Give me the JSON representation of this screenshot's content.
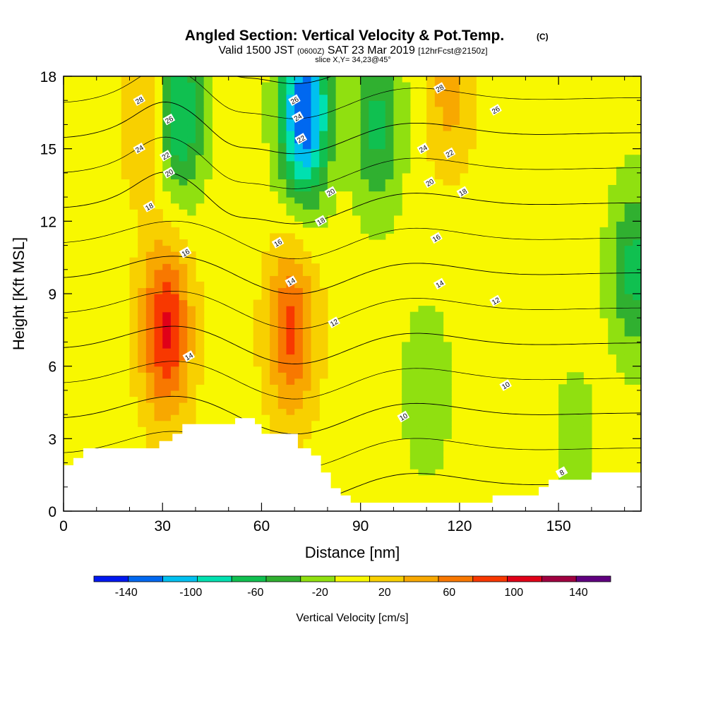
{
  "chart_data": {
    "type": "heatmap",
    "title": "Angled Section: Vertical Velocity & Pot.Temp.",
    "title_tag": "(C)",
    "valid_line": {
      "valid": "Valid 1500 JST",
      "zulu": "(0600Z)",
      "date": "SAT 23 Mar 2019",
      "forecast": "[12hrFcst@2150z]"
    },
    "slice_label": "slice X,Y= 34,23@45°",
    "xlabel": "Distance [nm]",
    "ylabel": "Height [Kft MSL]",
    "xlim": [
      0,
      175
    ],
    "ylim": [
      0,
      18
    ],
    "x_ticks": [
      "0",
      "30",
      "60",
      "90",
      "120",
      "150"
    ],
    "x_tick_values": [
      0,
      30,
      60,
      90,
      120,
      150
    ],
    "y_ticks": [
      "0",
      "3",
      "6",
      "9",
      "12",
      "15",
      "18"
    ],
    "y_tick_values": [
      0,
      3,
      6,
      9,
      12,
      15,
      18
    ],
    "colorbar": {
      "label": "Vertical Velocity [cm/s]",
      "tick_labels": [
        "-140",
        "-100",
        "-60",
        "-20",
        "20",
        "60",
        "100",
        "140"
      ],
      "tick_values": [
        -140,
        -100,
        -60,
        -20,
        20,
        60,
        100,
        140
      ],
      "range": [
        -160,
        160
      ],
      "colors": [
        "#0018f0",
        "#0068f0",
        "#00c0f0",
        "#00e0b0",
        "#10c050",
        "#30b030",
        "#90e010",
        "#f8f800",
        "#f8d000",
        "#f8a800",
        "#f87800",
        "#f83800",
        "#e00018",
        "#a00040",
        "#600080"
      ]
    },
    "velocity_cores": [
      {
        "x": 31,
        "z": 7.5,
        "value": 100
      },
      {
        "x": 69,
        "z": 7.5,
        "value": 80
      },
      {
        "x": 25,
        "z": 16.5,
        "value": 40
      },
      {
        "x": 117,
        "z": 17.5,
        "value": 40
      },
      {
        "x": 35,
        "z": 16.5,
        "value": -80
      },
      {
        "x": 73,
        "z": 16.5,
        "value": -140
      },
      {
        "x": 95,
        "z": 16.0,
        "value": -60
      },
      {
        "x": 173,
        "z": 10.0,
        "value": -60
      },
      {
        "x": 110,
        "z": 5.0,
        "value": -30
      },
      {
        "x": 155,
        "z": 3.0,
        "value": -20
      }
    ],
    "theta_contours": [
      {
        "value": 8,
        "label": "8"
      },
      {
        "value": 10,
        "label": "10"
      },
      {
        "value": 12,
        "label": "12"
      },
      {
        "value": 14,
        "label": "14"
      },
      {
        "value": 16,
        "label": "16"
      },
      {
        "value": 18,
        "label": "18"
      },
      {
        "value": 20,
        "label": "20"
      },
      {
        "value": 22,
        "label": "22"
      },
      {
        "value": 24,
        "label": "24"
      },
      {
        "value": 26,
        "label": "26"
      },
      {
        "value": 28,
        "label": "28"
      }
    ],
    "contour_label_marks": [
      {
        "x": 23,
        "z": 17.0,
        "label": "28"
      },
      {
        "x": 32,
        "z": 16.2,
        "label": "26"
      },
      {
        "x": 23,
        "z": 15.0,
        "label": "24"
      },
      {
        "x": 31,
        "z": 14.7,
        "label": "22"
      },
      {
        "x": 32,
        "z": 14.0,
        "label": "20"
      },
      {
        "x": 26,
        "z": 12.6,
        "label": "18"
      },
      {
        "x": 37,
        "z": 10.7,
        "label": "16"
      },
      {
        "x": 38,
        "z": 6.4,
        "label": "14"
      },
      {
        "x": 70,
        "z": 17.0,
        "label": "26"
      },
      {
        "x": 71,
        "z": 16.3,
        "label": "24"
      },
      {
        "x": 72,
        "z": 15.4,
        "label": "22"
      },
      {
        "x": 81,
        "z": 13.2,
        "label": "20"
      },
      {
        "x": 78,
        "z": 12.0,
        "label": "18"
      },
      {
        "x": 65,
        "z": 11.1,
        "label": "16"
      },
      {
        "x": 69,
        "z": 9.5,
        "label": "14"
      },
      {
        "x": 82,
        "z": 7.8,
        "label": "12"
      },
      {
        "x": 114,
        "z": 17.5,
        "label": "28"
      },
      {
        "x": 131,
        "z": 16.6,
        "label": "26"
      },
      {
        "x": 109,
        "z": 15.0,
        "label": "24"
      },
      {
        "x": 117,
        "z": 14.8,
        "label": "22"
      },
      {
        "x": 111,
        "z": 13.6,
        "label": "20"
      },
      {
        "x": 121,
        "z": 13.2,
        "label": "18"
      },
      {
        "x": 113,
        "z": 11.3,
        "label": "16"
      },
      {
        "x": 114,
        "z": 9.4,
        "label": "14"
      },
      {
        "x": 131,
        "z": 8.7,
        "label": "12"
      },
      {
        "x": 103,
        "z": 3.9,
        "label": "10"
      },
      {
        "x": 134,
        "z": 5.2,
        "label": "10"
      },
      {
        "x": 151,
        "z": 1.6,
        "label": "8"
      }
    ],
    "terrain": [
      [
        0,
        1.9
      ],
      [
        3,
        1.9
      ],
      [
        3,
        2.2
      ],
      [
        6,
        2.2
      ],
      [
        6,
        2.6
      ],
      [
        29,
        2.6
      ],
      [
        29,
        2.9
      ],
      [
        33,
        2.9
      ],
      [
        33,
        3.2
      ],
      [
        36,
        3.2
      ],
      [
        36,
        3.6
      ],
      [
        52,
        3.6
      ],
      [
        52,
        3.85
      ],
      [
        58,
        3.85
      ],
      [
        58,
        3.6
      ],
      [
        60,
        3.6
      ],
      [
        60,
        3.2
      ],
      [
        71,
        3.2
      ],
      [
        71,
        2.6
      ],
      [
        75,
        2.6
      ],
      [
        75,
        2.3
      ],
      [
        78,
        2.3
      ],
      [
        78,
        1.6
      ],
      [
        81,
        1.6
      ],
      [
        81,
        0.95
      ],
      [
        84,
        0.95
      ],
      [
        84,
        0.65
      ],
      [
        87,
        0.65
      ],
      [
        87,
        0.35
      ],
      [
        130,
        0.35
      ],
      [
        130,
        0.65
      ],
      [
        144,
        0.65
      ],
      [
        144,
        1.0
      ],
      [
        147,
        1.0
      ],
      [
        147,
        1.3
      ],
      [
        160,
        1.3
      ],
      [
        160,
        1.6
      ],
      [
        175,
        1.6
      ]
    ],
    "grid": false
  }
}
